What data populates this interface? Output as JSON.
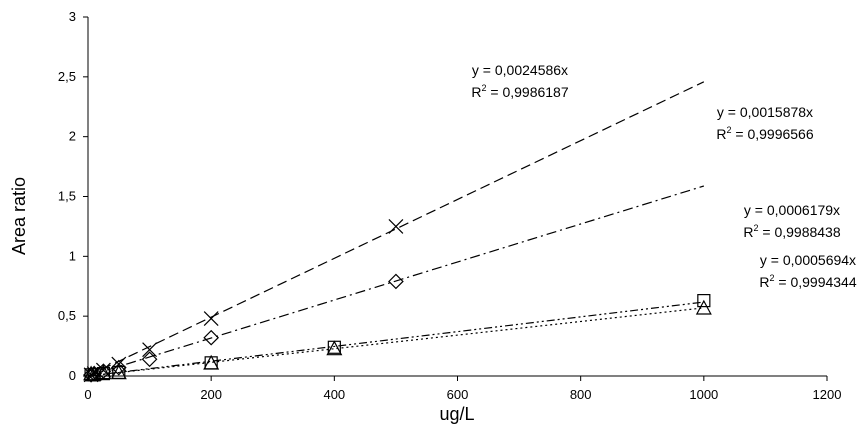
{
  "chart_data": {
    "type": "scatter",
    "xlabel": "ug/L",
    "ylabel": "Area ratio",
    "xlim": [
      0,
      1200
    ],
    "ylim": [
      0,
      3
    ],
    "x_ticks": [
      "0",
      "200",
      "400",
      "600",
      "800",
      "1000",
      "1200"
    ],
    "y_ticks": [
      "0",
      "0,5",
      "1",
      "1,5",
      "2",
      "2,5",
      "3"
    ],
    "grid": false,
    "legend": "none",
    "series": [
      {
        "marker": "x",
        "line_style": "dashed",
        "slope": 0.0024586,
        "trend_x_max": 1000,
        "x": [
          5,
          10,
          25,
          50,
          100,
          200,
          500
        ],
        "y": [
          0.01,
          0.02,
          0.05,
          0.1,
          0.22,
          0.48,
          1.25
        ],
        "equation": "y = 0,0024586x",
        "r2_prefix": "R",
        "r2_sup": "2",
        "r2_value": " = 0,9986187"
      },
      {
        "marker": "diamond",
        "line_style": "dashdot",
        "slope": 0.0015878,
        "trend_x_max": 1000,
        "x": [
          5,
          10,
          25,
          50,
          100,
          200,
          500
        ],
        "y": [
          0.01,
          0.02,
          0.04,
          0.07,
          0.14,
          0.32,
          0.79
        ],
        "equation": "y = 0,0015878x",
        "r2_prefix": "R",
        "r2_sup": "2",
        "r2_value": " = 0,9996566"
      },
      {
        "marker": "square",
        "line_style": "dashdotdot",
        "slope": 0.0006179,
        "trend_x_max": 1000,
        "x": [
          5,
          10,
          25,
          50,
          200,
          400,
          1000
        ],
        "y": [
          0.01,
          0.01,
          0.02,
          0.03,
          0.11,
          0.24,
          0.63
        ],
        "equation": "y = 0,0006179x",
        "r2_prefix": "R",
        "r2_sup": "2",
        "r2_value": " = 0,9988438"
      },
      {
        "marker": "triangle",
        "line_style": "dotted",
        "slope": 0.0005694,
        "trend_x_max": 1000,
        "x": [
          5,
          10,
          25,
          50,
          200,
          400,
          1000
        ],
        "y": [
          0.01,
          0.01,
          0.02,
          0.02,
          0.1,
          0.22,
          0.56
        ],
        "equation": "y = 0,0005694x",
        "r2_prefix": "R",
        "r2_sup": "2",
        "r2_value": " = 0,9994344"
      }
    ]
  }
}
